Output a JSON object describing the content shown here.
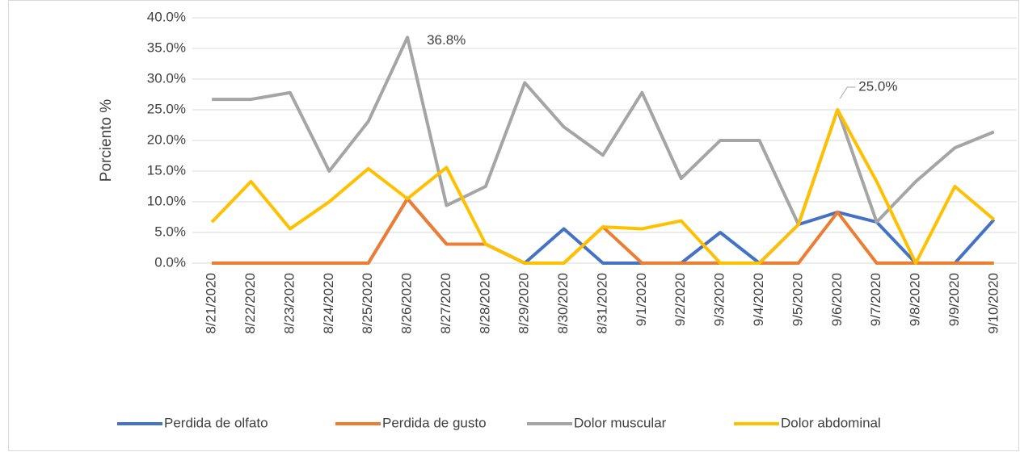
{
  "chart_data": {
    "type": "line",
    "y_label": "Porciento %",
    "categories": [
      "8/21/2020",
      "8/22/2020",
      "8/23/2020",
      "8/24/2020",
      "8/25/2020",
      "8/26/2020",
      "8/27/2020",
      "8/28/2020",
      "8/29/2020",
      "8/30/2020",
      "8/31/2020",
      "9/1/2020",
      "9/2/2020",
      "9/3/2020",
      "9/4/2020",
      "9/5/2020",
      "9/6/2020",
      "9/7/2020",
      "9/8/2020",
      "9/9/2020",
      "9/10/2020"
    ],
    "series": [
      {
        "name": "Perdida de olfato",
        "color": "#4472c4",
        "values": [
          0,
          0,
          0,
          0,
          0,
          10.5,
          3.1,
          3.1,
          0,
          5.6,
          0,
          0,
          0,
          5.0,
          0,
          6.3,
          8.3,
          6.7,
          0,
          0,
          7.1
        ]
      },
      {
        "name": "Perdida de gusto",
        "color": "#ed7d31",
        "values": [
          0,
          0,
          0,
          0,
          0,
          10.5,
          3.1,
          3.1,
          0,
          0,
          5.9,
          0,
          0,
          0,
          0,
          0,
          8.3,
          0,
          0,
          0,
          0
        ]
      },
      {
        "name": "Dolor muscular",
        "color": "#a5a5a5",
        "values": [
          26.7,
          26.7,
          27.8,
          15.0,
          23.1,
          36.8,
          9.4,
          12.5,
          29.4,
          22.2,
          17.6,
          27.8,
          13.8,
          20.0,
          20.0,
          6.3,
          25.0,
          6.7,
          13.3,
          18.8,
          21.4
        ],
        "value_labels": [
          null,
          null,
          null,
          null,
          null,
          "36.8%",
          null,
          null,
          null,
          null,
          null,
          null,
          null,
          null,
          null,
          null,
          "25.0%",
          null,
          null,
          null,
          null
        ]
      },
      {
        "name": "Dolor abdominal",
        "color": "#ffc000",
        "values": [
          6.7,
          13.3,
          5.6,
          10.0,
          15.4,
          10.5,
          15.6,
          3.1,
          0,
          0,
          5.9,
          5.6,
          6.9,
          0,
          0,
          6.3,
          25.0,
          13.3,
          0,
          12.5,
          7.1
        ]
      }
    ],
    "ylim": [
      0,
      40
    ],
    "yticks": [
      {
        "value": 0,
        "label": "0.0%"
      },
      {
        "value": 5,
        "label": "5.0%"
      },
      {
        "value": 10,
        "label": "10.0%"
      },
      {
        "value": 15,
        "label": "15.0%"
      },
      {
        "value": 20,
        "label": "20.0%"
      },
      {
        "value": 25,
        "label": "25.0%"
      },
      {
        "value": 30,
        "label": "30.0%"
      },
      {
        "value": 35,
        "label": "35.0%"
      },
      {
        "value": 40,
        "label": "40.0%"
      }
    ],
    "grid": true,
    "legend": "bottom"
  }
}
